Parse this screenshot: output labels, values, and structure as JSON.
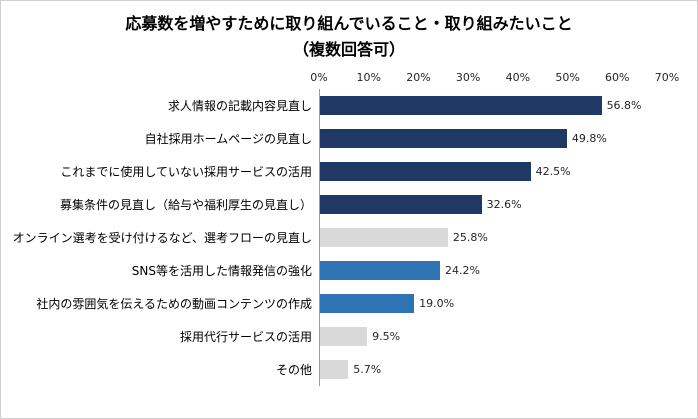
{
  "chart_data": {
    "type": "bar",
    "orientation": "horizontal",
    "title": "応募数を増やすために取り組んでいること・取り組みたいこと",
    "subtitle": "（複数回答可）",
    "xlim": [
      0,
      70
    ],
    "x_ticks": [
      "0%",
      "10%",
      "20%",
      "30%",
      "40%",
      "50%",
      "60%",
      "70%"
    ],
    "axis_position": "top",
    "grid": false,
    "legend": "none",
    "colors": {
      "dark_navy": "#203864",
      "medium_blue": "#2e74b5",
      "light_gray": "#d9d9d9"
    },
    "bars": [
      {
        "category": "求人情報の記載内容見直し",
        "value": 56.8,
        "label": "56.8%",
        "color": "#203864"
      },
      {
        "category": "自社採用ホームページの見直し",
        "value": 49.8,
        "label": "49.8%",
        "color": "#203864"
      },
      {
        "category": "これまでに使用していない採用サービスの活用",
        "value": 42.5,
        "label": "42.5%",
        "color": "#203864"
      },
      {
        "category": "募集条件の見直し（給与や福利厚生の見直し）",
        "value": 32.6,
        "label": "32.6%",
        "color": "#203864"
      },
      {
        "category": "オンライン選考を受け付けるなど、選考フローの見直し",
        "value": 25.8,
        "label": "25.8%",
        "color": "#d9d9d9"
      },
      {
        "category": "SNS等を活用した情報発信の強化",
        "value": 24.2,
        "label": "24.2%",
        "color": "#2e74b5"
      },
      {
        "category": "社内の雰囲気を伝えるための動画コンテンツの作成",
        "value": 19.0,
        "label": "19.0%",
        "color": "#2e74b5"
      },
      {
        "category": "採用代行サービスの活用",
        "value": 9.5,
        "label": "9.5%",
        "color": "#d9d9d9"
      },
      {
        "category": "その他",
        "value": 5.7,
        "label": "5.7%",
        "color": "#d9d9d9"
      }
    ]
  }
}
